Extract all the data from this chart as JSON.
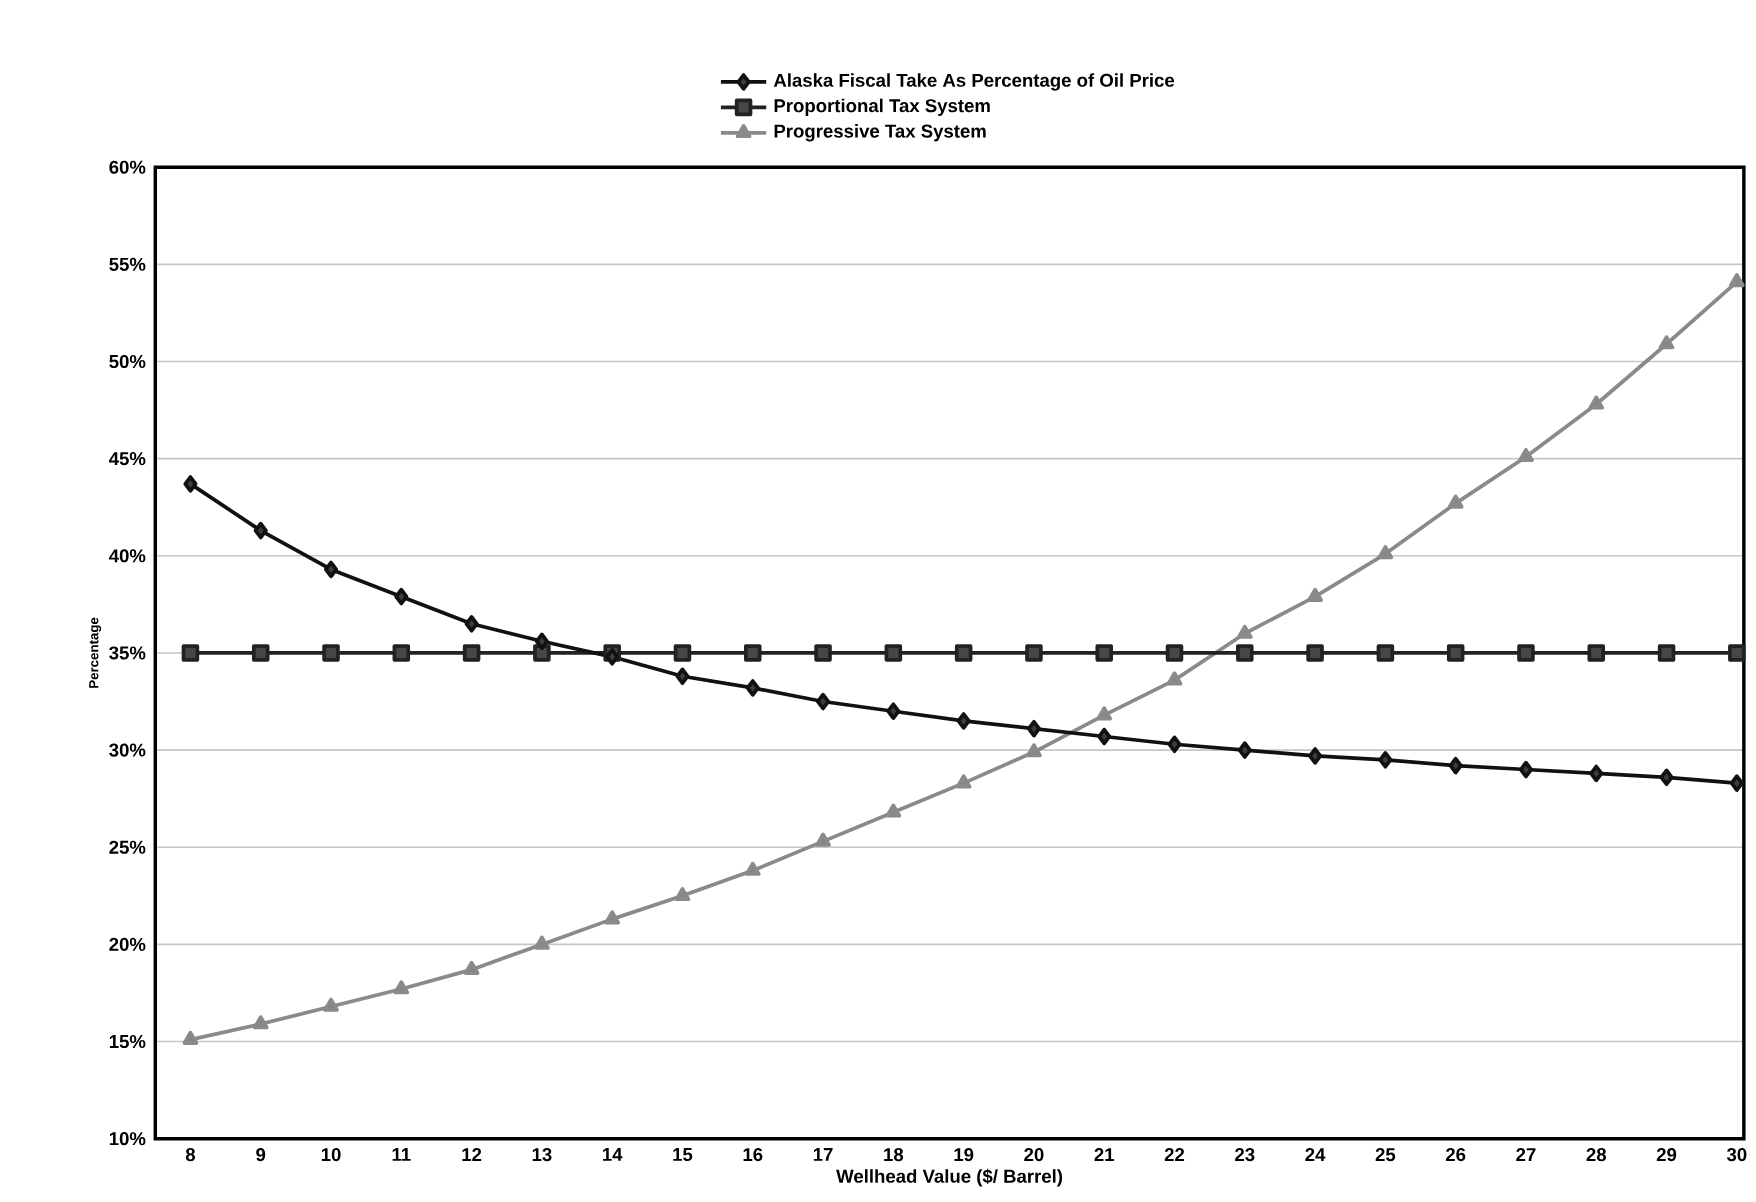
{
  "chart_data": {
    "type": "line",
    "xlabel": "Wellhead Value ($/ Barrel)",
    "ylabel": "Percentage",
    "x": [
      8,
      9,
      10,
      11,
      12,
      13,
      14,
      15,
      16,
      17,
      18,
      19,
      20,
      21,
      22,
      23,
      24,
      25,
      26,
      27,
      28,
      29,
      30
    ],
    "series": [
      {
        "name": "Alaska Fiscal Take As Percentage of Oil Price",
        "color": "#111111",
        "marker": "diamond",
        "values": [
          43.7,
          41.3,
          39.3,
          37.9,
          36.5,
          35.6,
          34.8,
          33.8,
          33.2,
          32.5,
          32.0,
          31.5,
          31.1,
          30.7,
          30.3,
          30.0,
          29.7,
          29.5,
          29.2,
          29.0,
          28.8,
          28.6,
          28.3
        ]
      },
      {
        "name": "Proportional Tax System",
        "color": "#222222",
        "marker": "square",
        "values": [
          35,
          35,
          35,
          35,
          35,
          35,
          35,
          35,
          35,
          35,
          35,
          35,
          35,
          35,
          35,
          35,
          35,
          35,
          35,
          35,
          35,
          35,
          35
        ]
      },
      {
        "name": "Progressive Tax System",
        "color": "#8a8a8a",
        "marker": "triangle",
        "values": [
          15.1,
          15.9,
          16.8,
          17.7,
          18.7,
          20.0,
          21.3,
          22.5,
          23.8,
          25.3,
          26.8,
          28.3,
          29.9,
          31.8,
          33.6,
          36.0,
          37.9,
          40.1,
          42.7,
          45.1,
          47.8,
          50.9,
          54.1
        ]
      }
    ],
    "xlim": [
      7.5,
      30.1
    ],
    "xticks": [
      8,
      9,
      10,
      11,
      12,
      13,
      14,
      15,
      16,
      17,
      18,
      19,
      20,
      21,
      22,
      23,
      24,
      25,
      26,
      27,
      28,
      29,
      30
    ],
    "ylim": [
      10,
      60
    ],
    "yticks": [
      {
        "value": 10,
        "label": "10%"
      },
      {
        "value": 15,
        "label": "15%"
      },
      {
        "value": 20,
        "label": "20%"
      },
      {
        "value": 25,
        "label": "25%"
      },
      {
        "value": 30,
        "label": "30%"
      },
      {
        "value": 35,
        "label": "35%"
      },
      {
        "value": 40,
        "label": "40%"
      },
      {
        "value": 45,
        "label": "45%"
      },
      {
        "value": 50,
        "label": "50%"
      },
      {
        "value": 55,
        "label": "55%"
      },
      {
        "value": 60,
        "label": "60%"
      }
    ],
    "grid": "y",
    "legend": "top",
    "line_style": "solid"
  }
}
